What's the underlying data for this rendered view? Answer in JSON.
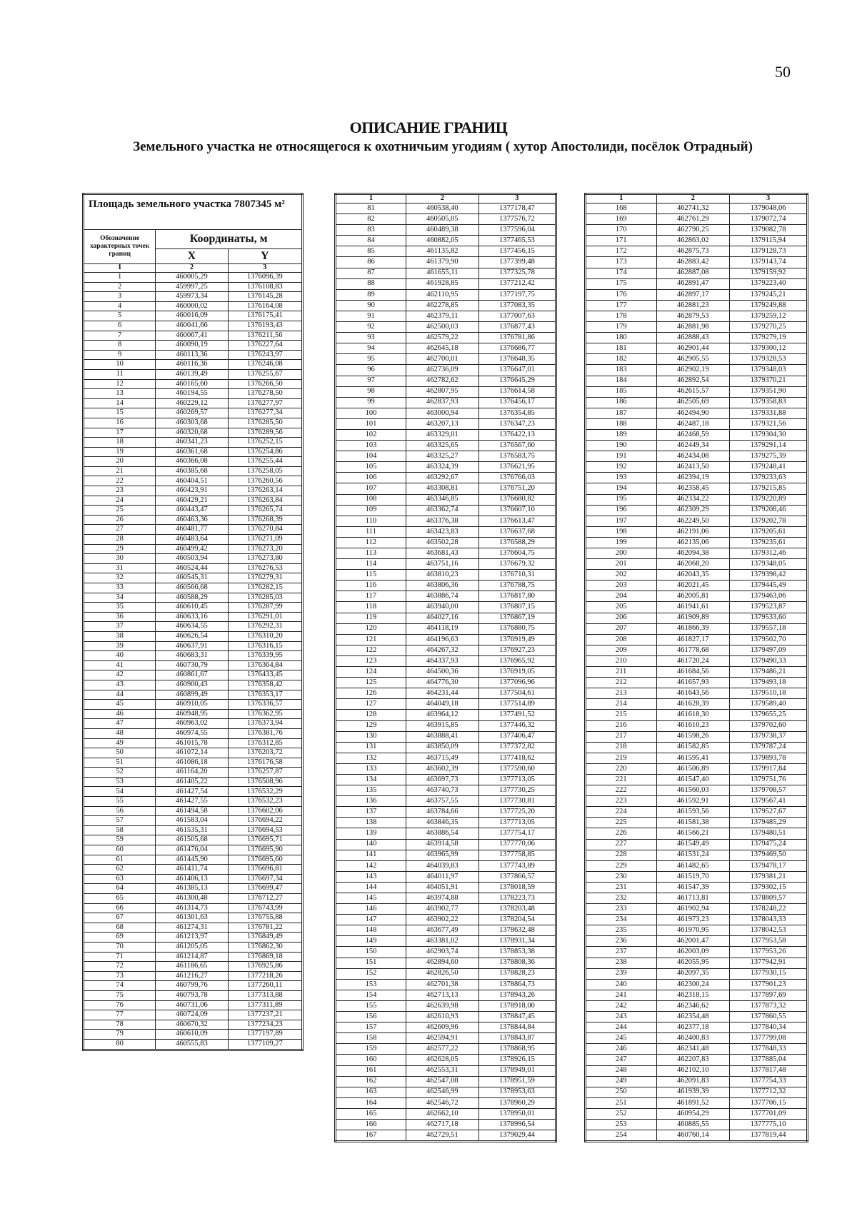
{
  "page_number": "50",
  "title": "ОПИСАНИЕ ГРАНИЦ",
  "subtitle": "Земельного участка не относящегося к охотничьим угодиям ( хутор Апостолиди, посёлок Отрадный)",
  "table_header": {
    "area_label": "Площадь земельного участка 7807345 м²",
    "designation": "Обозначение характерных точек границ",
    "coordinates": "Координаты, м",
    "x": "X",
    "y": "Y",
    "col_numbers": [
      "1",
      "2",
      "3"
    ]
  },
  "tables": [
    [
      [
        "1",
        "460005,29",
        "1376096,39"
      ],
      [
        "2",
        "459997,25",
        "1376108,83"
      ],
      [
        "3",
        "459973,34",
        "1376145,28"
      ],
      [
        "4",
        "460000,02",
        "1376164,08"
      ],
      [
        "5",
        "460016,09",
        "1376175,41"
      ],
      [
        "6",
        "460041,66",
        "1376193,43"
      ],
      [
        "7",
        "460067,41",
        "1376211,56"
      ],
      [
        "8",
        "460090,19",
        "1376227,64"
      ],
      [
        "9",
        "460113,36",
        "1376243,97"
      ],
      [
        "10",
        "460116,36",
        "1376246,08"
      ],
      [
        "11",
        "460139,49",
        "1376255,67"
      ],
      [
        "12",
        "460165,60",
        "1376266,50"
      ],
      [
        "13",
        "460194,55",
        "1376278,50"
      ],
      [
        "14",
        "460229,12",
        "1376277,97"
      ],
      [
        "15",
        "460269,57",
        "1376277,34"
      ],
      [
        "16",
        "460303,68",
        "1376285,50"
      ],
      [
        "17",
        "460320,68",
        "1376289,56"
      ],
      [
        "18",
        "460341,23",
        "1376252,15"
      ],
      [
        "19",
        "460361,68",
        "1376254,86"
      ],
      [
        "20",
        "460366,08",
        "1376255,44"
      ],
      [
        "21",
        "460385,68",
        "1376258,05"
      ],
      [
        "22",
        "460404,51",
        "1376260,56"
      ],
      [
        "23",
        "460423,91",
        "1376263,14"
      ],
      [
        "24",
        "460429,21",
        "1376263,84"
      ],
      [
        "25",
        "460443,47",
        "1376265,74"
      ],
      [
        "26",
        "460463,36",
        "1376268,39"
      ],
      [
        "27",
        "460481,77",
        "1376270,84"
      ],
      [
        "28",
        "460483,64",
        "1376271,09"
      ],
      [
        "29",
        "460499,42",
        "1376273,20"
      ],
      [
        "30",
        "460503,94",
        "1376273,80"
      ],
      [
        "31",
        "460524,44",
        "1376276,53"
      ],
      [
        "32",
        "460545,31",
        "1376279,31"
      ],
      [
        "33",
        "460566,68",
        "1376282,15"
      ],
      [
        "34",
        "460588,29",
        "1376285,03"
      ],
      [
        "35",
        "460610,45",
        "1376287,99"
      ],
      [
        "36",
        "460633,16",
        "1376291,01"
      ],
      [
        "37",
        "460634,55",
        "1376292,31"
      ],
      [
        "38",
        "460626,54",
        "1376310,20"
      ],
      [
        "39",
        "460637,91",
        "1376316,15"
      ],
      [
        "40",
        "460683,31",
        "1376339,95"
      ],
      [
        "41",
        "460730,79",
        "1376364,84"
      ],
      [
        "42",
        "460861,67",
        "1376433,45"
      ],
      [
        "43",
        "460900,43",
        "1376358,42"
      ],
      [
        "44",
        "460899,49",
        "1376353,17"
      ],
      [
        "45",
        "460910,05",
        "1376336,57"
      ],
      [
        "46",
        "460948,95",
        "1376362,95"
      ],
      [
        "47",
        "460963,02",
        "1376373,94"
      ],
      [
        "48",
        "460974,55",
        "1376381,76"
      ],
      [
        "49",
        "461015,78",
        "1376312,85"
      ],
      [
        "50",
        "461072,14",
        "1376203,72"
      ],
      [
        "51",
        "461086,18",
        "1376176,58"
      ],
      [
        "52",
        "461164,20",
        "1376257,87"
      ],
      [
        "53",
        "461405,22",
        "1376508,96"
      ],
      [
        "54",
        "461427,54",
        "1376532,29"
      ],
      [
        "55",
        "461427,55",
        "1376532,23"
      ],
      [
        "56",
        "461494,58",
        "1376602,06"
      ],
      [
        "57",
        "461583,04",
        "1376694,22"
      ],
      [
        "58",
        "461535,31",
        "1376694,53"
      ],
      [
        "59",
        "461505,68",
        "1376695,71"
      ],
      [
        "60",
        "461476,04",
        "1376695,90"
      ],
      [
        "61",
        "461445,90",
        "1376695,60"
      ],
      [
        "62",
        "461411,74",
        "1376696,81"
      ],
      [
        "63",
        "461406,13",
        "1376697,34"
      ],
      [
        "64",
        "461385,13",
        "1376699,47"
      ],
      [
        "65",
        "461300,48",
        "1376712,27"
      ],
      [
        "66",
        "461314,73",
        "1376743,99"
      ],
      [
        "67",
        "461301,63",
        "1376755,88"
      ],
      [
        "68",
        "461274,31",
        "1376781,22"
      ],
      [
        "69",
        "461213,97",
        "1376849,49"
      ],
      [
        "70",
        "461205,05",
        "1376862,30"
      ],
      [
        "71",
        "461214,87",
        "1376869,18"
      ],
      [
        "72",
        "461186,65",
        "1376925,86"
      ],
      [
        "73",
        "461216,27",
        "1377218,26"
      ],
      [
        "74",
        "460799,76",
        "1377260,11"
      ],
      [
        "75",
        "460793,78",
        "1377313,88"
      ],
      [
        "76",
        "460731,06",
        "1377311,89"
      ],
      [
        "77",
        "460724,09",
        "1377237,21"
      ],
      [
        "78",
        "460670,32",
        "1377234,23"
      ],
      [
        "79",
        "460610,09",
        "1377197,89"
      ],
      [
        "80",
        "460555,83",
        "1377109,27"
      ]
    ],
    [
      [
        "81",
        "460538,40",
        "1377178,47"
      ],
      [
        "82",
        "460505,05",
        "1377576,72"
      ],
      [
        "83",
        "460489,38",
        "1377596,04"
      ],
      [
        "84",
        "460882,05",
        "1377465,53"
      ],
      [
        "85",
        "461135,82",
        "1377456,15"
      ],
      [
        "86",
        "461379,90",
        "1377399,48"
      ],
      [
        "87",
        "461655,11",
        "1377325,78"
      ],
      [
        "88",
        "461928,85",
        "1377212,42"
      ],
      [
        "89",
        "462110,95",
        "1377197,75"
      ],
      [
        "90",
        "462278,85",
        "1377083,35"
      ],
      [
        "91",
        "462379,11",
        "1377007,63"
      ],
      [
        "92",
        "462500,03",
        "1376877,43"
      ],
      [
        "93",
        "462579,22",
        "1376781,86"
      ],
      [
        "94",
        "462645,18",
        "1376686,77"
      ],
      [
        "95",
        "462700,01",
        "1376648,35"
      ],
      [
        "96",
        "462736,09",
        "1376647,01"
      ],
      [
        "97",
        "462782,62",
        "1376645,29"
      ],
      [
        "98",
        "462807,95",
        "1376614,58"
      ],
      [
        "99",
        "462837,93",
        "1376456,17"
      ],
      [
        "100",
        "463000,94",
        "1376354,85"
      ],
      [
        "101",
        "463207,13",
        "1376347,23"
      ],
      [
        "102",
        "463329,01",
        "1376422,13"
      ],
      [
        "103",
        "463325,65",
        "1376567,60"
      ],
      [
        "104",
        "463325,27",
        "1376583,75"
      ],
      [
        "105",
        "463324,39",
        "1376621,95"
      ],
      [
        "106",
        "463292,67",
        "1376766,03"
      ],
      [
        "107",
        "463308,81",
        "1376751,20"
      ],
      [
        "108",
        "463346,85",
        "1376680,82"
      ],
      [
        "109",
        "463362,74",
        "1376607,10"
      ],
      [
        "110",
        "463376,38",
        "1376613,47"
      ],
      [
        "111",
        "463423,83",
        "1376637,68"
      ],
      [
        "112",
        "463502,28",
        "1376588,29"
      ],
      [
        "113",
        "463681,43",
        "1376604,75"
      ],
      [
        "114",
        "463751,16",
        "1376679,32"
      ],
      [
        "115",
        "463810,23",
        "1376710,31"
      ],
      [
        "116",
        "463806,36",
        "1376788,75"
      ],
      [
        "117",
        "463886,74",
        "1376817,80"
      ],
      [
        "118",
        "463940,00",
        "1376807,15"
      ],
      [
        "119",
        "464027,16",
        "1376867,19"
      ],
      [
        "120",
        "464118,19",
        "1376880,75"
      ],
      [
        "121",
        "464196,63",
        "1376919,49"
      ],
      [
        "122",
        "464267,32",
        "1376927,23"
      ],
      [
        "123",
        "464337,93",
        "1376965,92"
      ],
      [
        "124",
        "464500,36",
        "1376919,05"
      ],
      [
        "125",
        "464776,30",
        "1377096,96"
      ],
      [
        "126",
        "464231,44",
        "1377504,61"
      ],
      [
        "127",
        "464049,18",
        "1377514,89"
      ],
      [
        "128",
        "463964,12",
        "1377491,52"
      ],
      [
        "129",
        "463915,85",
        "1377446,32"
      ],
      [
        "130",
        "463888,41",
        "1377406,47"
      ],
      [
        "131",
        "463850,09",
        "1377372,82"
      ],
      [
        "132",
        "463715,49",
        "1377418,62"
      ],
      [
        "133",
        "463602,39",
        "1377590,60"
      ],
      [
        "134",
        "463697,73",
        "1377713,05"
      ],
      [
        "135",
        "463740,73",
        "1377730,25"
      ],
      [
        "136",
        "463757,55",
        "1377730,81"
      ],
      [
        "137",
        "463784,66",
        "1377725,20"
      ],
      [
        "138",
        "463846,35",
        "1377713,05"
      ],
      [
        "139",
        "463886,54",
        "1377754,17"
      ],
      [
        "140",
        "463914,58",
        "1377770,06"
      ],
      [
        "141",
        "463965,99",
        "1377758,85"
      ],
      [
        "142",
        "464039,83",
        "1377743,89"
      ],
      [
        "143",
        "464011,97",
        "1377866,57"
      ],
      [
        "144",
        "464051,91",
        "1378018,59"
      ],
      [
        "145",
        "463974,88",
        "1378223,73"
      ],
      [
        "146",
        "463902,77",
        "1378203,48"
      ],
      [
        "147",
        "463902,22",
        "1378204,54"
      ],
      [
        "148",
        "463677,49",
        "1378632,48"
      ],
      [
        "149",
        "463381,02",
        "1378931,34"
      ],
      [
        "150",
        "462903,74",
        "1378853,38"
      ],
      [
        "151",
        "462894,60",
        "1378808,36"
      ],
      [
        "152",
        "462826,50",
        "1378828,23"
      ],
      [
        "153",
        "462701,38",
        "1378864,73"
      ],
      [
        "154",
        "462713,13",
        "1378943,26"
      ],
      [
        "155",
        "462639,98",
        "1378918,00"
      ],
      [
        "156",
        "462610,93",
        "1378847,45"
      ],
      [
        "157",
        "462609,96",
        "1378844,84"
      ],
      [
        "158",
        "462594,91",
        "1378843,87"
      ],
      [
        "159",
        "462577,22",
        "1378868,95"
      ],
      [
        "160",
        "462628,05",
        "1378926,15"
      ],
      [
        "161",
        "462553,31",
        "1378949,01"
      ],
      [
        "162",
        "462547,08",
        "1378951,59"
      ],
      [
        "163",
        "462546,99",
        "1378953,63"
      ],
      [
        "164",
        "462546,72",
        "1378960,29"
      ],
      [
        "165",
        "462662,10",
        "1378950,01"
      ],
      [
        "166",
        "462717,18",
        "1378996,54"
      ],
      [
        "167",
        "462729,51",
        "1379029,44"
      ]
    ],
    [
      [
        "168",
        "462741,32",
        "1379048,06"
      ],
      [
        "169",
        "462761,29",
        "1379072,74"
      ],
      [
        "170",
        "462790,25",
        "1379082,78"
      ],
      [
        "171",
        "462863,02",
        "1379115,94"
      ],
      [
        "172",
        "462875,73",
        "1379128,73"
      ],
      [
        "173",
        "462883,42",
        "1379143,74"
      ],
      [
        "174",
        "462887,08",
        "1379159,92"
      ],
      [
        "175",
        "462891,47",
        "1379223,40"
      ],
      [
        "176",
        "462897,17",
        "1379245,21"
      ],
      [
        "177",
        "462881,23",
        "1379249,88"
      ],
      [
        "178",
        "462879,53",
        "1379259,12"
      ],
      [
        "179",
        "462881,98",
        "1379270,25"
      ],
      [
        "180",
        "462888,43",
        "1379279,19"
      ],
      [
        "181",
        "462901,44",
        "1379300,12"
      ],
      [
        "182",
        "462905,55",
        "1379328,53"
      ],
      [
        "183",
        "462902,19",
        "1379348,03"
      ],
      [
        "184",
        "462892,54",
        "1379370,21"
      ],
      [
        "185",
        "462615,57",
        "1379351,90"
      ],
      [
        "186",
        "462505,69",
        "1379358,83"
      ],
      [
        "187",
        "462494,90",
        "1379331,88"
      ],
      [
        "188",
        "462487,18",
        "1379321,56"
      ],
      [
        "189",
        "462468,59",
        "1379304,30"
      ],
      [
        "190",
        "462449,34",
        "1379291,14"
      ],
      [
        "191",
        "462434,08",
        "1379275,39"
      ],
      [
        "192",
        "462413,50",
        "1379248,41"
      ],
      [
        "193",
        "462394,19",
        "1379233,63"
      ],
      [
        "194",
        "462358,45",
        "1379215,85"
      ],
      [
        "195",
        "462334,22",
        "1379220,89"
      ],
      [
        "196",
        "462309,29",
        "1379208,46"
      ],
      [
        "197",
        "462249,50",
        "1379202,78"
      ],
      [
        "198",
        "462191,06",
        "1379205,61"
      ],
      [
        "199",
        "462135,06",
        "1379235,61"
      ],
      [
        "200",
        "462094,38",
        "1379312,46"
      ],
      [
        "201",
        "462068,20",
        "1379348,05"
      ],
      [
        "202",
        "462043,35",
        "1379398,42"
      ],
      [
        "203",
        "462021,45",
        "1379445,49"
      ],
      [
        "204",
        "462005,81",
        "1379463,06"
      ],
      [
        "205",
        "461941,61",
        "1379523,87"
      ],
      [
        "206",
        "461909,89",
        "1379533,60"
      ],
      [
        "207",
        "461866,39",
        "1379557,18"
      ],
      [
        "208",
        "461827,17",
        "1379502,70"
      ],
      [
        "209",
        "461778,68",
        "1379497,09"
      ],
      [
        "210",
        "461720,24",
        "1379490,33"
      ],
      [
        "211",
        "461684,56",
        "1379486,21"
      ],
      [
        "212",
        "461657,93",
        "1379493,18"
      ],
      [
        "213",
        "461643,56",
        "1379510,18"
      ],
      [
        "214",
        "461628,39",
        "1379589,40"
      ],
      [
        "215",
        "461618,30",
        "1379655,25"
      ],
      [
        "216",
        "461610,23",
        "1379702,60"
      ],
      [
        "217",
        "461598,26",
        "1379738,37"
      ],
      [
        "218",
        "461582,85",
        "1379787,24"
      ],
      [
        "219",
        "461595,41",
        "1379893,78"
      ],
      [
        "220",
        "461506,89",
        "1379917,84"
      ],
      [
        "221",
        "461547,40",
        "1379751,76"
      ],
      [
        "222",
        "461560,03",
        "1379708,57"
      ],
      [
        "223",
        "461592,91",
        "1379567,41"
      ],
      [
        "224",
        "461593,56",
        "1379527,67"
      ],
      [
        "225",
        "461581,38",
        "1379485,29"
      ],
      [
        "226",
        "461566,21",
        "1379480,51"
      ],
      [
        "227",
        "461549,49",
        "1379475,24"
      ],
      [
        "228",
        "461531,24",
        "1379469,50"
      ],
      [
        "229",
        "461482,65",
        "1379478,17"
      ],
      [
        "230",
        "461519,70",
        "1379381,21"
      ],
      [
        "231",
        "461547,39",
        "1379302,15"
      ],
      [
        "232",
        "461713,81",
        "1378809,57"
      ],
      [
        "233",
        "461902,94",
        "1378248,22"
      ],
      [
        "234",
        "461973,23",
        "1378043,33"
      ],
      [
        "235",
        "461970,95",
        "1378042,53"
      ],
      [
        "236",
        "462001,47",
        "1377953,58"
      ],
      [
        "237",
        "462003,09",
        "1377953,26"
      ],
      [
        "238",
        "462055,95",
        "1377942,91"
      ],
      [
        "239",
        "462097,35",
        "1377930,15"
      ],
      [
        "240",
        "462300,24",
        "1377901,23"
      ],
      [
        "241",
        "462318,15",
        "1377897,69"
      ],
      [
        "242",
        "462346,62",
        "1377873,32"
      ],
      [
        "243",
        "462354,48",
        "1377860,55"
      ],
      [
        "244",
        "462377,18",
        "1377840,34"
      ],
      [
        "245",
        "462400,83",
        "1377799,08"
      ],
      [
        "246",
        "462341,48",
        "1377848,33"
      ],
      [
        "247",
        "462207,83",
        "1377885,04"
      ],
      [
        "248",
        "462102,10",
        "1377817,48"
      ],
      [
        "249",
        "462091,83",
        "1377754,33"
      ],
      [
        "250",
        "461939,39",
        "1377712,32"
      ],
      [
        "251",
        "461891,52",
        "1377706,15"
      ],
      [
        "252",
        "460954,29",
        "1377701,09"
      ],
      [
        "253",
        "460885,55",
        "1377775,10"
      ],
      [
        "254",
        "460760,14",
        "1377819,44"
      ]
    ]
  ]
}
